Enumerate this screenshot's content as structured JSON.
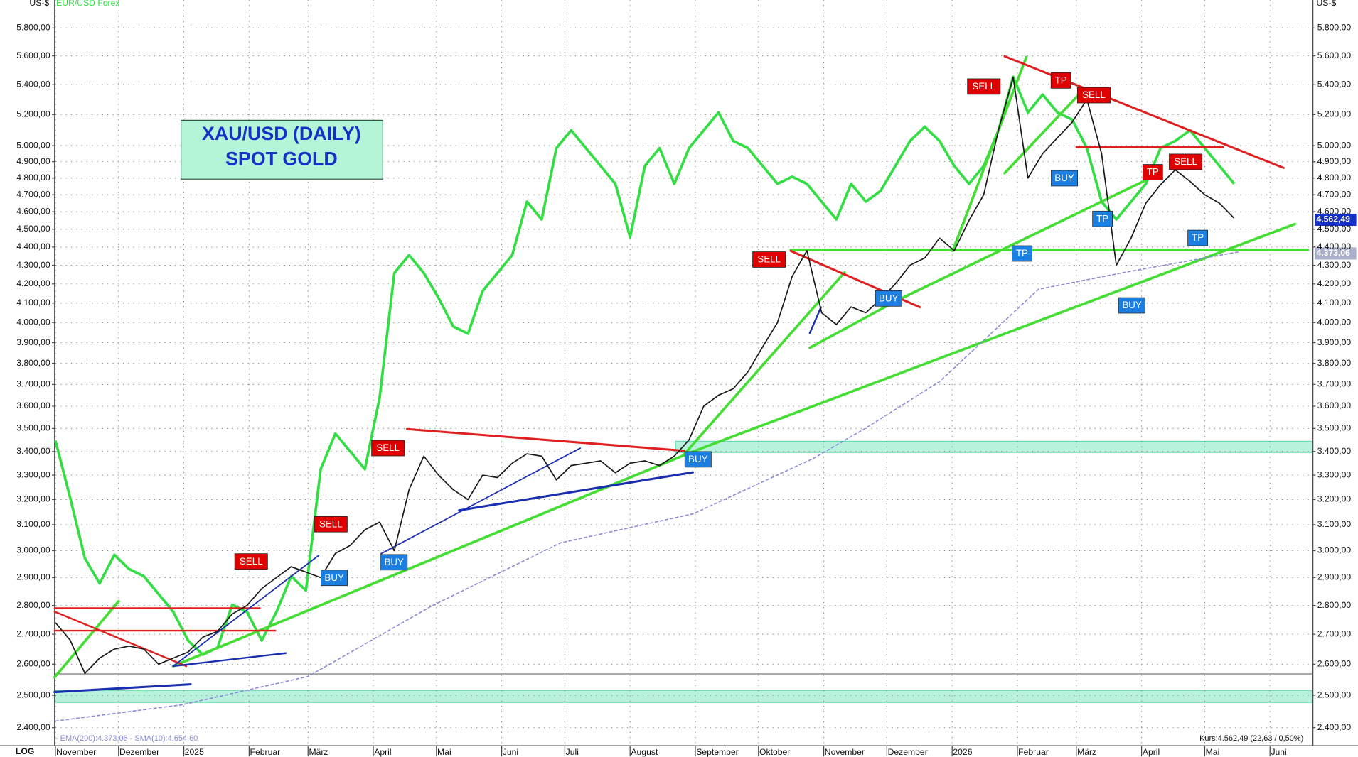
{
  "chart_data": {
    "type": "line",
    "title_lines": [
      "XAU/USD (DAILY)",
      "SPOT GOLD"
    ],
    "y_unit": "US-$",
    "scale_label": "LOG",
    "legend_text": "- EMA(200):4.373,06 - SMA(10):4.654,60",
    "quote_text": "Kurs:4.562,49 (22,63 / 0,50%)",
    "last_price_label": "4.562,49",
    "ema_price_label": "4.373,06",
    "log_scale": true,
    "grid": true,
    "xlim": [
      0,
      597
    ],
    "xticks": [
      {
        "value": 0,
        "label": "November"
      },
      {
        "value": 30,
        "label": "Dezember"
      },
      {
        "value": 61,
        "label": "2025"
      },
      {
        "value": 92,
        "label": "Februar"
      },
      {
        "value": 120,
        "label": "März"
      },
      {
        "value": 151,
        "label": "April"
      },
      {
        "value": 181,
        "label": "Mai"
      },
      {
        "value": 212,
        "label": "Juni"
      },
      {
        "value": 242,
        "label": "Juli"
      },
      {
        "value": 273,
        "label": "August"
      },
      {
        "value": 304,
        "label": "September"
      },
      {
        "value": 334,
        "label": "Oktober"
      },
      {
        "value": 365,
        "label": "November"
      },
      {
        "value": 395,
        "label": "Dezember"
      },
      {
        "value": 426,
        "label": "2026"
      },
      {
        "value": 457,
        "label": "Februar"
      },
      {
        "value": 485,
        "label": "März"
      },
      {
        "value": 516,
        "label": "April"
      },
      {
        "value": 546,
        "label": "Mai"
      },
      {
        "value": 577,
        "label": "Juni"
      }
    ],
    "ylim": [
      2346,
      6008
    ],
    "yticks": [
      {
        "value": 2400,
        "label": "2.400,00"
      },
      {
        "value": 2500,
        "label": "2.500,00"
      },
      {
        "value": 2600,
        "label": "2.600,00"
      },
      {
        "value": 2700,
        "label": "2.700,00"
      },
      {
        "value": 2800,
        "label": "2.800,00"
      },
      {
        "value": 2900,
        "label": "2.900,00"
      },
      {
        "value": 3000,
        "label": "3.000,00"
      },
      {
        "value": 3100,
        "label": "3.100,00"
      },
      {
        "value": 3200,
        "label": "3.200,00"
      },
      {
        "value": 3300,
        "label": "3.300,00"
      },
      {
        "value": 3400,
        "label": "3.400,00"
      },
      {
        "value": 3500,
        "label": "3.500,00"
      },
      {
        "value": 3600,
        "label": "3.600,00"
      },
      {
        "value": 3700,
        "label": "3.700,00"
      },
      {
        "value": 3800,
        "label": "3.800,00"
      },
      {
        "value": 3900,
        "label": "3.900,00"
      },
      {
        "value": 4000,
        "label": "4.000,00"
      },
      {
        "value": 4100,
        "label": "4.100,00"
      },
      {
        "value": 4200,
        "label": "4.200,00"
      },
      {
        "value": 4300,
        "label": "4.300,00"
      },
      {
        "value": 4400,
        "label": "4.400,00"
      },
      {
        "value": 4500,
        "label": "4.500,00"
      },
      {
        "value": 4600,
        "label": "4.600,00"
      },
      {
        "value": 4700,
        "label": "4.700,00"
      },
      {
        "value": 4800,
        "label": "4.800,00"
      },
      {
        "value": 4900,
        "label": "4.900,00"
      },
      {
        "value": 5000,
        "label": "5.000,00"
      },
      {
        "value": 5200,
        "label": "5.200,00"
      },
      {
        "value": 5400,
        "label": "5.400,00"
      },
      {
        "value": 5600,
        "label": "5.600,00"
      },
      {
        "value": 5800,
        "label": "5.800,00"
      }
    ],
    "y2lim": [
      1.0025,
      1.2115
    ],
    "x": [
      0,
      7,
      14,
      21,
      28,
      35,
      42,
      49,
      56,
      63,
      70,
      77,
      84,
      91,
      98,
      105,
      112,
      119,
      126,
      133,
      140,
      147,
      154,
      161,
      168,
      175,
      182,
      189,
      196,
      203,
      210,
      217,
      224,
      231,
      238,
      245,
      252,
      259,
      266,
      273,
      280,
      287,
      294,
      301,
      308,
      315,
      322,
      329,
      336,
      343,
      350,
      357,
      364,
      371,
      378,
      385,
      392,
      399,
      406,
      413,
      420,
      427,
      434,
      441,
      448,
      455,
      462,
      469,
      476,
      483,
      490,
      497,
      504,
      511,
      518,
      525,
      532,
      539,
      546,
      553,
      560
    ],
    "series": [
      {
        "color": "#1a1a1a",
        "values": [
          2740,
          2680,
          2570,
          2620,
          2650,
          2660,
          2650,
          2600,
          2620,
          2640,
          2690,
          2710,
          2770,
          2800,
          2860,
          2900,
          2940,
          2920,
          2900,
          2990,
          3020,
          3080,
          3110,
          3000,
          3240,
          3380,
          3300,
          3240,
          3200,
          3300,
          3290,
          3350,
          3390,
          3380,
          3280,
          3340,
          3350,
          3360,
          3310,
          3350,
          3360,
          3340,
          3380,
          3450,
          3600,
          3650,
          3680,
          3760,
          3880,
          4000,
          4240,
          4380,
          4050,
          3990,
          4080,
          4050,
          4120,
          4200,
          4300,
          4340,
          4450,
          4380,
          4550,
          4700,
          5100,
          5450,
          4800,
          4950,
          5050,
          5150,
          5300,
          4950,
          4300,
          4450,
          4650,
          4760,
          4850,
          4780,
          4700,
          4650,
          4562
        ]
      },
      {
        "name": "EUR/USD Forex",
        "color": "#33dd44",
        "axis": "y2",
        "values": [
          1.088,
          1.072,
          1.055,
          1.048,
          1.056,
          1.052,
          1.05,
          1.045,
          1.04,
          1.032,
          1.028,
          1.03,
          1.042,
          1.04,
          1.032,
          1.04,
          1.05,
          1.046,
          1.08,
          1.09,
          1.085,
          1.08,
          1.1,
          1.135,
          1.14,
          1.135,
          1.128,
          1.12,
          1.118,
          1.13,
          1.135,
          1.14,
          1.155,
          1.15,
          1.17,
          1.175,
          1.17,
          1.165,
          1.16,
          1.145,
          1.165,
          1.17,
          1.16,
          1.17,
          1.175,
          1.18,
          1.172,
          1.17,
          1.165,
          1.16,
          1.162,
          1.16,
          1.155,
          1.15,
          1.16,
          1.155,
          1.158,
          1.165,
          1.172,
          1.176,
          1.172,
          1.165,
          1.16,
          1.165,
          1.175,
          1.19,
          1.18,
          1.185,
          1.18,
          1.178,
          1.17,
          1.155,
          1.15,
          1.155,
          1.16,
          1.17,
          1.172,
          1.175,
          1.17,
          1.165,
          1.16
        ]
      },
      {
        "color": "#8a8ad8",
        "dashed": true,
        "x": [
          0,
          60,
          120,
          179,
          240,
          303,
          360,
          385,
          420,
          467,
          509,
          562
        ],
        "values": [
          2420,
          2470,
          2560,
          2799,
          3030,
          3143,
          3370,
          3502,
          3713,
          4172,
          4264,
          4373
        ]
      }
    ],
    "annotations": [
      {
        "text": "SELL",
        "color": "#e00000"
      },
      {
        "text": "SELL",
        "color": "#e00000"
      },
      {
        "text": "BUY",
        "color": "#1a7fe0"
      },
      {
        "text": "BUY",
        "color": "#1a7fe0"
      },
      {
        "text": "SELL",
        "color": "#e00000"
      },
      {
        "text": "BUY",
        "color": "#1a7fe0"
      },
      {
        "text": "SELL",
        "color": "#e00000"
      },
      {
        "text": "BUY",
        "color": "#1a7fe0"
      },
      {
        "text": "SELL",
        "color": "#e00000"
      },
      {
        "text": "TP",
        "color": "#1a7fe0"
      },
      {
        "text": "TP",
        "color": "#e00000"
      },
      {
        "text": "SELL",
        "color": "#e00000"
      },
      {
        "text": "BUY",
        "color": "#1a7fe0"
      },
      {
        "text": "TP",
        "color": "#1a7fe0"
      },
      {
        "text": "BUY",
        "color": "#1a7fe0"
      },
      {
        "text": "TP",
        "color": "#e00000"
      },
      {
        "text": "SELL",
        "color": "#e00000"
      },
      {
        "text": "TP",
        "color": "#1a7fe0"
      }
    ]
  }
}
